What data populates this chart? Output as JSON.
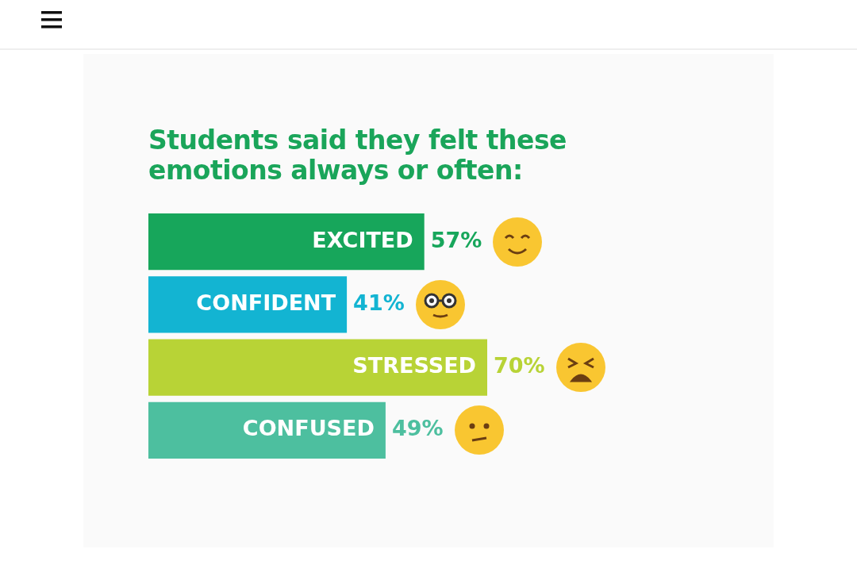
{
  "chart_data": {
    "type": "bar",
    "orientation": "horizontal",
    "title": "Students said they felt these emotions always or often:",
    "categories": [
      "EXCITED",
      "CONFIDENT",
      "STRESSED",
      "CONFUSED"
    ],
    "values": [
      57,
      41,
      70,
      49
    ],
    "colors": [
      "#17a65b",
      "#13b4d2",
      "#b8d336",
      "#4dbf9f"
    ],
    "value_labels": [
      "57%",
      "41%",
      "70%",
      "49%"
    ],
    "legend": false
  }
}
